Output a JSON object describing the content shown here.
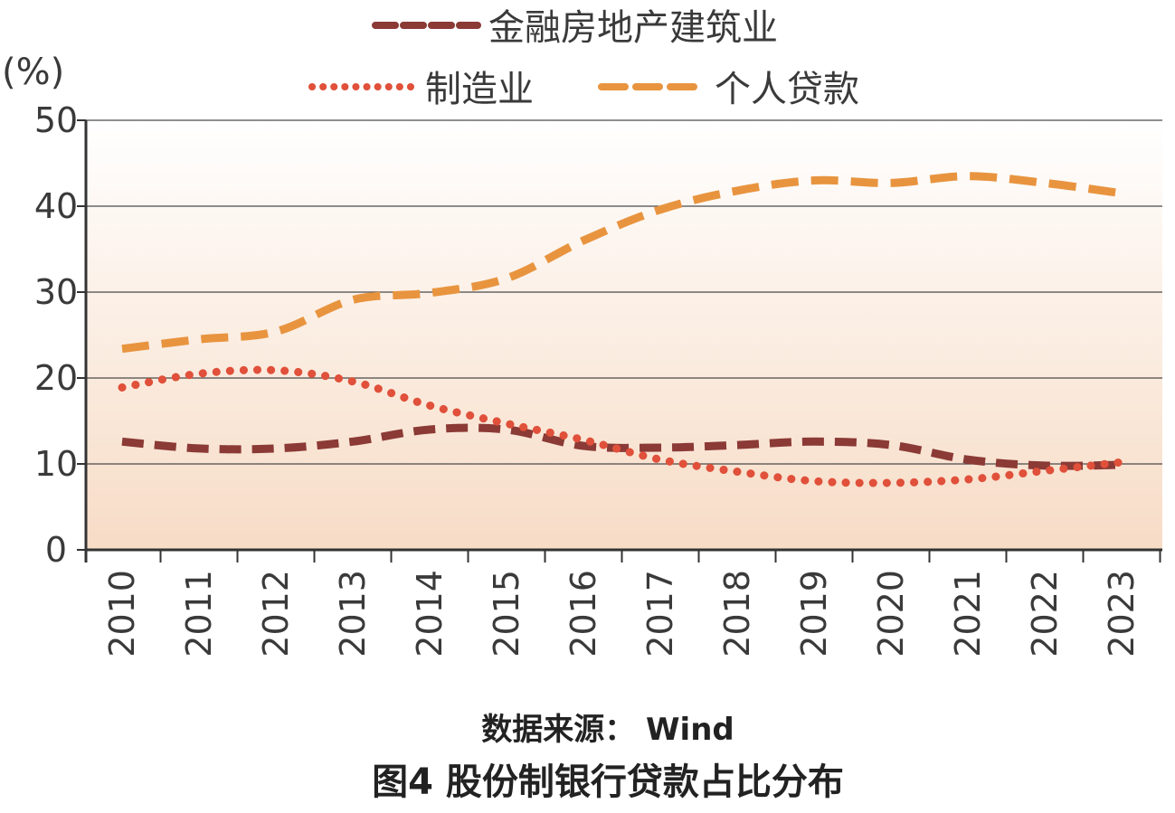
{
  "chart_data": {
    "type": "line",
    "title": "图4 股份制银行贷款占比分布",
    "source": "数据来源： Wind",
    "ylabel": "(%)",
    "xlabel": "",
    "ylim": [
      0,
      50
    ],
    "yticks": [
      "0",
      "10",
      "20",
      "30",
      "40",
      "50"
    ],
    "categories": [
      "2010",
      "2011",
      "2012",
      "2013",
      "2014",
      "2015",
      "2016",
      "2017",
      "2018",
      "2019",
      "2020",
      "2021",
      "2022",
      "2023"
    ],
    "grid": true,
    "legend_position": "top",
    "series": [
      {
        "name": "金融房地产建筑业",
        "style": "dashed",
        "color": "#8B3A36",
        "values": [
          12.6,
          11.8,
          11.8,
          12.6,
          14.0,
          14.0,
          12.1,
          11.9,
          12.2,
          12.6,
          12.2,
          10.5,
          9.8,
          9.9
        ]
      },
      {
        "name": "制造业",
        "style": "dotted",
        "color": "#E0503A",
        "values": [
          18.9,
          20.5,
          20.9,
          19.6,
          16.8,
          14.7,
          12.8,
          10.5,
          9.1,
          8.0,
          7.8,
          8.2,
          9.2,
          10.2
        ]
      },
      {
        "name": "个人贷款",
        "style": "dashed",
        "color": "#E8943F",
        "values": [
          23.4,
          24.5,
          25.4,
          29.1,
          29.9,
          31.6,
          36.0,
          39.6,
          41.8,
          43.0,
          42.7,
          43.5,
          42.7,
          41.5
        ]
      }
    ]
  }
}
